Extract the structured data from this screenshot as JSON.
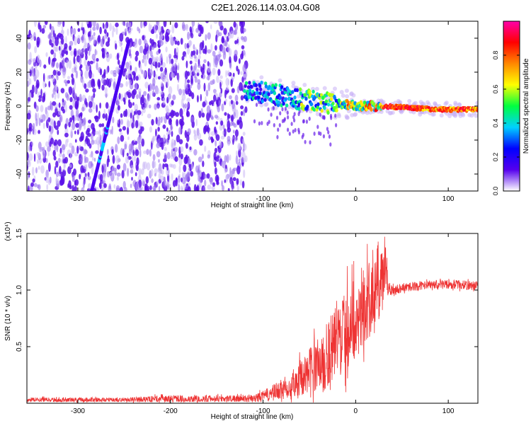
{
  "title": "C2E1.2026.114.03.04.G08",
  "chart_data": [
    {
      "type": "heatmap",
      "xlabel": "Height of straight line (km)",
      "ylabel": "Frequency (Hz)",
      "xlim": [
        -355,
        132
      ],
      "ylim": [
        -50,
        50
      ],
      "x_ticks": [
        -300,
        -200,
        -100,
        0,
        100
      ],
      "x_tick_labels": [
        "-300",
        "-200",
        "-100",
        "0",
        "100"
      ],
      "y_ticks": [
        -40,
        -20,
        0,
        20,
        40
      ],
      "y_tick_labels": [
        "-40",
        "-20",
        "0",
        "20",
        "40"
      ],
      "noise_region_x": [
        -355,
        -118
      ],
      "oblique_track": {
        "x": [
          -285,
          -245
        ],
        "y": [
          -50,
          38
        ]
      },
      "main_track": {
        "x": [
          -120,
          -90,
          -60,
          -30,
          -10,
          10,
          30,
          60,
          90,
          132
        ],
        "y": [
          10,
          7,
          4,
          2,
          1,
          0,
          0,
          -1,
          -2,
          -2
        ]
      },
      "colorbar": {
        "label": "Normalized spectral amplitude",
        "range": [
          0.0,
          1.0
        ],
        "ticks": [
          0.0,
          0.2,
          0.4,
          0.6,
          0.8
        ],
        "tick_labels": [
          "0.0",
          "0.2",
          "0.4",
          "0.6",
          "0.8"
        ],
        "colors": [
          "#ffffff",
          "#5500ee",
          "#0000ff",
          "#00d0ff",
          "#00ff40",
          "#ffff00",
          "#ff8800",
          "#ff0000",
          "#ff00aa"
        ]
      }
    },
    {
      "type": "line",
      "xlabel": "Height of straight line (km)",
      "ylabel": "SNR (10 * v/v)",
      "y_multiplier_label": "(x10⁴)",
      "xlim": [
        -355,
        132
      ],
      "ylim": [
        0,
        1.5
      ],
      "x_ticks": [
        -300,
        -200,
        -100,
        0,
        100
      ],
      "x_tick_labels": [
        "-300",
        "-200",
        "-100",
        "0",
        "100"
      ],
      "y_ticks": [
        0.5,
        1.0,
        1.5
      ],
      "y_tick_labels": [
        "0.5",
        "1.0",
        "1.5"
      ],
      "series": [
        {
          "name": "SNR",
          "color": "#ee3333",
          "x": [
            -355,
            -300,
            -250,
            -200,
            -150,
            -110,
            -100,
            -90,
            -80,
            -70,
            -60,
            -50,
            -40,
            -30,
            -20,
            -10,
            0,
            10,
            20,
            25,
            30,
            33,
            35,
            40,
            50,
            60,
            70,
            80,
            90,
            100,
            110,
            120,
            132
          ],
          "y": [
            0.03,
            0.03,
            0.03,
            0.04,
            0.04,
            0.04,
            0.06,
            0.09,
            0.12,
            0.17,
            0.22,
            0.28,
            0.35,
            0.45,
            0.55,
            0.65,
            0.75,
            0.85,
            0.95,
            1.0,
            1.1,
            1.2,
            1.0,
            1.0,
            1.02,
            1.03,
            1.04,
            1.04,
            1.05,
            1.05,
            1.05,
            1.04,
            1.04
          ],
          "noise_amplitude": [
            0.02,
            0.02,
            0.02,
            0.03,
            0.03,
            0.03,
            0.05,
            0.07,
            0.09,
            0.12,
            0.15,
            0.2,
            0.25,
            0.3,
            0.33,
            0.35,
            0.35,
            0.35,
            0.35,
            0.3,
            0.25,
            0.25,
            0.06,
            0.05,
            0.04,
            0.04,
            0.04,
            0.04,
            0.04,
            0.04,
            0.04,
            0.04,
            0.04
          ]
        }
      ]
    }
  ]
}
